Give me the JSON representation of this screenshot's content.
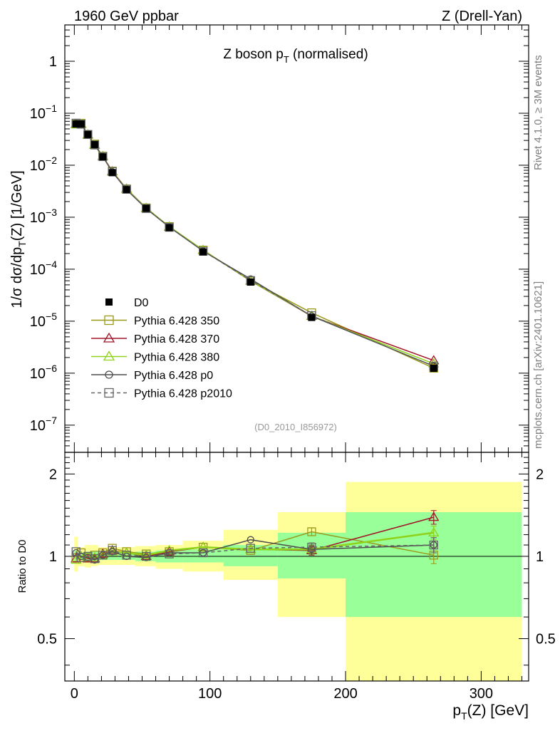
{
  "header": {
    "left": "1960 GeV ppbar",
    "right": "Z (Drell-Yan)"
  },
  "side": {
    "rivet": "Rivet 4.1.0, ≥ 3M events",
    "mcplots": "mcplots.cern.ch [arXiv:2401.10621]"
  },
  "chart_data": [
    {
      "type": "line",
      "panel": "main",
      "title": "Z boson p_T (normalised)",
      "title_main": "Z boson p",
      "title_sub": "T",
      "title_rest": " (normalised)",
      "ylabel": "1/σ dσ/dp_T(Z) [1/GeV]",
      "ylabel_pre": "1/σ  dσ/dp",
      "ylabel_sub": "T",
      "ylabel_post": "(Z) [1/GeV]",
      "yscale": "log",
      "ylim": [
        3e-08,
        5
      ],
      "xlim": [
        -7,
        335
      ],
      "ytick_labels": [
        {
          "v": 1,
          "label": "1"
        },
        {
          "v": 0.1,
          "base": "10",
          "exp": "−1"
        },
        {
          "v": 0.01,
          "base": "10",
          "exp": "−2"
        },
        {
          "v": 0.001,
          "base": "10",
          "exp": "−3"
        },
        {
          "v": 0.0001,
          "base": "10",
          "exp": "−4"
        },
        {
          "v": 1e-05,
          "base": "10",
          "exp": "−5"
        },
        {
          "v": 1e-06,
          "base": "10",
          "exp": "−6"
        },
        {
          "v": 1e-07,
          "base": "10",
          "exp": "−7"
        }
      ],
      "analysis_label": "(D0_2010_I856972)",
      "x": [
        1.25,
        5.0,
        10.0,
        15.0,
        21.0,
        28.0,
        38.5,
        53.0,
        70.0,
        95.0,
        130.0,
        175.0,
        265.0
      ],
      "data": {
        "name": "D0",
        "values": [
          0.062,
          0.062,
          0.039,
          0.025,
          0.0145,
          0.0072,
          0.0034,
          0.00148,
          0.00063,
          0.000215,
          5.65e-05,
          1.18e-05,
          1.24e-06
        ]
      },
      "series": [
        {
          "name": "Pythia 6.428 350",
          "color": "#9a9a1a",
          "marker": "square",
          "dashed": false,
          "values": [
            0.062,
            0.064,
            0.039,
            0.0255,
            0.0149,
            0.0077,
            0.0035,
            0.00151,
            0.00066,
            0.000233,
            5.95e-05,
            1.45e-05,
            1.25e-06
          ]
        },
        {
          "name": "Pythia 6.428 370",
          "color": "#a01428",
          "marker": "triangle",
          "dashed": false,
          "values": [
            0.0615,
            0.0618,
            0.0385,
            0.0245,
            0.0148,
            0.0076,
            0.0035,
            0.00149,
            0.00065,
            0.000232,
            5.95e-05,
            1.25e-05,
            1.75e-06
          ]
        },
        {
          "name": "Pythia 6.428 380",
          "color": "#8fd21a",
          "marker": "triangle",
          "dashed": false,
          "values": [
            0.0605,
            0.062,
            0.0388,
            0.0248,
            0.0147,
            0.0075,
            0.00348,
            0.0015,
            0.00066,
            0.000232,
            5.98e-05,
            1.26e-05,
            1.52e-06
          ]
        },
        {
          "name": "Pythia 6.428 p0",
          "color": "#4d4d4d",
          "marker": "circle",
          "dashed": false,
          "values": [
            0.064,
            0.062,
            0.0385,
            0.0243,
            0.0146,
            0.00745,
            0.0034,
            0.00146,
            0.00065,
            0.000222,
            6.48e-05,
            1.25e-05,
            1.37e-06
          ]
        },
        {
          "name": "Pythia 6.428 p2010",
          "color": "#666666",
          "marker": "square",
          "dashed": true,
          "values": [
            0.0645,
            0.0615,
            0.039,
            0.0245,
            0.0147,
            0.00755,
            0.00345,
            0.00147,
            0.00064,
            0.000222,
            6.05e-05,
            1.28e-05,
            1.37e-06
          ]
        }
      ]
    },
    {
      "type": "line",
      "panel": "ratio",
      "ylabel": "Ratio to D0",
      "xlabel": "p_T(Z) [GeV]",
      "xlabel_pre": "p",
      "xlabel_sub": "T",
      "xlabel_post": "(Z) [GeV]",
      "yscale": "log",
      "ylim": [
        0.35,
        2.4
      ],
      "xlim": [
        -7,
        335
      ],
      "xticks": [
        0,
        100,
        200,
        300
      ],
      "yticks": [
        0.5,
        1,
        2
      ],
      "ytick_labels": [
        "0.5",
        "1",
        "2"
      ],
      "bands": {
        "bins": [
          [
            0,
            2.5
          ],
          [
            2.5,
            7.5
          ],
          [
            7.5,
            12.5
          ],
          [
            12.5,
            17.5
          ],
          [
            17.5,
            25
          ],
          [
            25,
            32
          ],
          [
            32,
            45
          ],
          [
            45,
            60
          ],
          [
            60,
            80
          ],
          [
            80,
            110
          ],
          [
            110,
            150
          ],
          [
            150,
            200
          ],
          [
            200,
            330
          ]
        ],
        "inner": [
          [
            0.95,
            1.05
          ],
          [
            0.97,
            1.03
          ],
          [
            0.96,
            1.04
          ],
          [
            0.96,
            1.04
          ],
          [
            0.97,
            1.03
          ],
          [
            0.97,
            1.03
          ],
          [
            0.97,
            1.03
          ],
          [
            0.96,
            1.04
          ],
          [
            0.95,
            1.05
          ],
          [
            0.95,
            1.06
          ],
          [
            0.92,
            1.1
          ],
          [
            0.83,
            1.22
          ],
          [
            0.6,
            1.45
          ]
        ],
        "outer": [
          [
            0.88,
            1.18
          ],
          [
            0.92,
            1.08
          ],
          [
            0.91,
            1.1
          ],
          [
            0.92,
            1.1
          ],
          [
            0.93,
            1.08
          ],
          [
            0.93,
            1.08
          ],
          [
            0.93,
            1.08
          ],
          [
            0.92,
            1.09
          ],
          [
            0.9,
            1.1
          ],
          [
            0.88,
            1.14
          ],
          [
            0.82,
            1.25
          ],
          [
            0.6,
            1.45
          ],
          [
            0.35,
            1.87
          ]
        ]
      },
      "series_ratio": [
        {
          "name": "Pythia 6.428 350",
          "values": [
            0.99,
            1.03,
            0.99,
            1.01,
            1.03,
            1.07,
            1.04,
            1.02,
            1.04,
            1.08,
            1.05,
            1.23,
            1.01
          ],
          "err": [
            0,
            0,
            0,
            0,
            0,
            0,
            0,
            0,
            0,
            0,
            0,
            0.04,
            0.07
          ]
        },
        {
          "name": "Pythia 6.428 370",
          "values": [
            0.98,
            1.0,
            0.98,
            0.98,
            1.02,
            1.05,
            1.03,
            1.0,
            1.04,
            1.08,
            1.06,
            1.05,
            1.39
          ],
          "err": [
            0,
            0,
            0,
            0,
            0,
            0,
            0,
            0,
            0,
            0,
            0,
            0.04,
            0.08
          ]
        },
        {
          "name": "Pythia 6.428 380",
          "values": [
            0.97,
            1.0,
            0.99,
            0.99,
            1.01,
            1.04,
            1.03,
            1.01,
            1.05,
            1.08,
            1.06,
            1.06,
            1.22
          ],
          "err": [
            0,
            0,
            0,
            0,
            0,
            0,
            0,
            0,
            0,
            0,
            0,
            0.04,
            0.07
          ]
        },
        {
          "name": "Pythia 6.428 p0",
          "values": [
            1.03,
            1.0,
            0.99,
            0.97,
            1.01,
            1.04,
            1.0,
            0.99,
            1.03,
            1.03,
            1.15,
            1.06,
            1.1
          ],
          "err": [
            0,
            0,
            0,
            0,
            0,
            0,
            0,
            0,
            0,
            0,
            0,
            0.04,
            0.07
          ]
        },
        {
          "name": "Pythia 6.428 p2010",
          "values": [
            1.04,
            0.99,
            1.0,
            0.98,
            1.01,
            1.05,
            1.01,
            1.0,
            1.02,
            1.03,
            1.07,
            1.08,
            1.1
          ],
          "err": [
            0,
            0,
            0,
            0,
            0,
            0,
            0,
            0,
            0,
            0,
            0,
            0.04,
            0.07
          ]
        }
      ]
    }
  ]
}
